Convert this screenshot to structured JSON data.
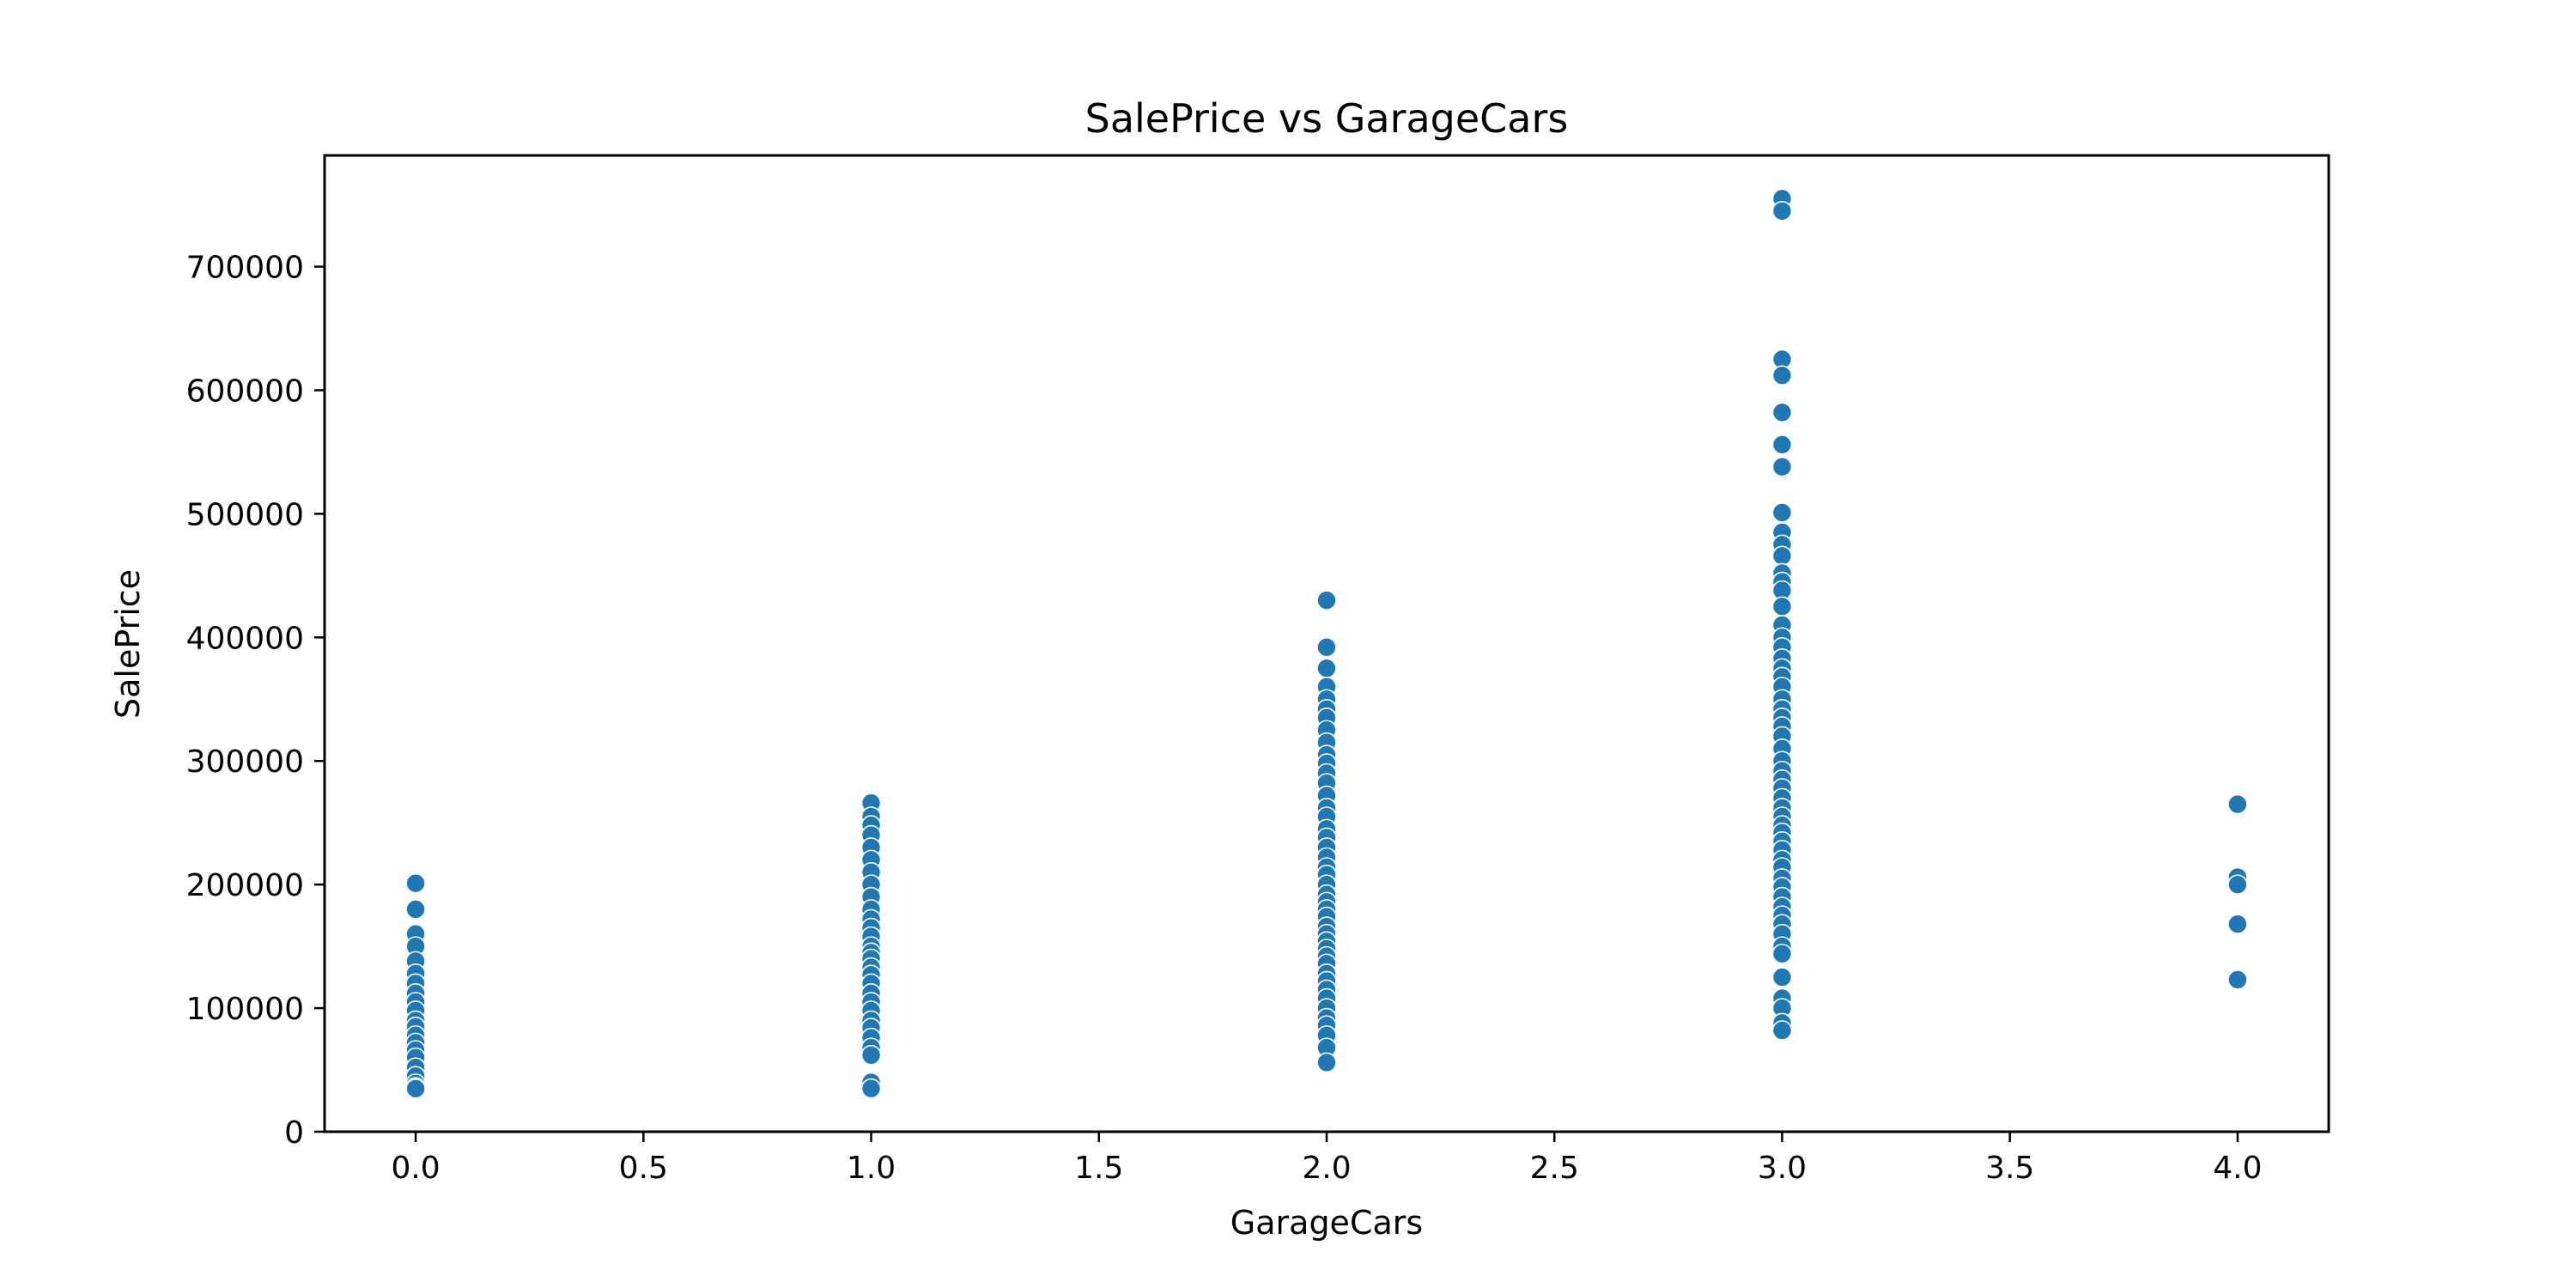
{
  "chart_data": {
    "type": "scatter",
    "title": "SalePrice vs GarageCars",
    "xlabel": "GarageCars",
    "ylabel": "SalePrice",
    "xlim": [
      -0.2,
      4.2
    ],
    "ylim": [
      0,
      790000
    ],
    "xticks": [
      "0.0",
      "0.5",
      "1.0",
      "1.5",
      "2.0",
      "2.5",
      "3.0",
      "3.5",
      "4.0"
    ],
    "yticks": [
      "0",
      "100000",
      "200000",
      "300000",
      "400000",
      "500000",
      "600000",
      "700000"
    ],
    "grid": false,
    "marker_color": "#1f77b4",
    "series": [
      {
        "points": [
          [
            0,
            201000
          ],
          [
            0,
            180000
          ],
          [
            0,
            160000
          ],
          [
            0,
            150000
          ],
          [
            0,
            138000
          ],
          [
            0,
            128000
          ],
          [
            0,
            120000
          ],
          [
            0,
            112000
          ],
          [
            0,
            105000
          ],
          [
            0,
            98000
          ],
          [
            0,
            90000
          ],
          [
            0,
            85000
          ],
          [
            0,
            78000
          ],
          [
            0,
            72000
          ],
          [
            0,
            66000
          ],
          [
            0,
            60000
          ],
          [
            0,
            52000
          ],
          [
            0,
            45000
          ],
          [
            0,
            39000
          ],
          [
            0,
            36000
          ],
          [
            0,
            34900
          ],
          [
            1,
            266000
          ],
          [
            1,
            255000
          ],
          [
            1,
            248000
          ],
          [
            1,
            240000
          ],
          [
            1,
            230000
          ],
          [
            1,
            220000
          ],
          [
            1,
            210000
          ],
          [
            1,
            200000
          ],
          [
            1,
            190000
          ],
          [
            1,
            180000
          ],
          [
            1,
            172000
          ],
          [
            1,
            165000
          ],
          [
            1,
            158000
          ],
          [
            1,
            150000
          ],
          [
            1,
            145000
          ],
          [
            1,
            140000
          ],
          [
            1,
            133000
          ],
          [
            1,
            127000
          ],
          [
            1,
            120000
          ],
          [
            1,
            112000
          ],
          [
            1,
            105000
          ],
          [
            1,
            98000
          ],
          [
            1,
            90000
          ],
          [
            1,
            84000
          ],
          [
            1,
            76000
          ],
          [
            1,
            68000
          ],
          [
            1,
            62000
          ],
          [
            1,
            40000
          ],
          [
            1,
            35000
          ],
          [
            2,
            430000
          ],
          [
            2,
            392000
          ],
          [
            2,
            375000
          ],
          [
            2,
            360000
          ],
          [
            2,
            350000
          ],
          [
            2,
            342000
          ],
          [
            2,
            335000
          ],
          [
            2,
            325000
          ],
          [
            2,
            315000
          ],
          [
            2,
            305000
          ],
          [
            2,
            298000
          ],
          [
            2,
            290000
          ],
          [
            2,
            282000
          ],
          [
            2,
            272000
          ],
          [
            2,
            262000
          ],
          [
            2,
            255000
          ],
          [
            2,
            245000
          ],
          [
            2,
            238000
          ],
          [
            2,
            230000
          ],
          [
            2,
            222000
          ],
          [
            2,
            214000
          ],
          [
            2,
            208000
          ],
          [
            2,
            200000
          ],
          [
            2,
            192000
          ],
          [
            2,
            186000
          ],
          [
            2,
            180000
          ],
          [
            2,
            174000
          ],
          [
            2,
            166000
          ],
          [
            2,
            160000
          ],
          [
            2,
            154000
          ],
          [
            2,
            148000
          ],
          [
            2,
            142000
          ],
          [
            2,
            136000
          ],
          [
            2,
            128000
          ],
          [
            2,
            122000
          ],
          [
            2,
            115000
          ],
          [
            2,
            108000
          ],
          [
            2,
            100000
          ],
          [
            2,
            92000
          ],
          [
            2,
            86000
          ],
          [
            2,
            78000
          ],
          [
            2,
            68000
          ],
          [
            2,
            56000
          ],
          [
            3,
            755000
          ],
          [
            3,
            745000
          ],
          [
            3,
            625000
          ],
          [
            3,
            612000
          ],
          [
            3,
            582000
          ],
          [
            3,
            556000
          ],
          [
            3,
            538000
          ],
          [
            3,
            501000
          ],
          [
            3,
            485000
          ],
          [
            3,
            475000
          ],
          [
            3,
            466000
          ],
          [
            3,
            452000
          ],
          [
            3,
            445000
          ],
          [
            3,
            438000
          ],
          [
            3,
            425000
          ],
          [
            3,
            410000
          ],
          [
            3,
            400000
          ],
          [
            3,
            392000
          ],
          [
            3,
            383000
          ],
          [
            3,
            375000
          ],
          [
            3,
            368000
          ],
          [
            3,
            360000
          ],
          [
            3,
            350000
          ],
          [
            3,
            342000
          ],
          [
            3,
            335000
          ],
          [
            3,
            328000
          ],
          [
            3,
            320000
          ],
          [
            3,
            310000
          ],
          [
            3,
            300000
          ],
          [
            3,
            292000
          ],
          [
            3,
            285000
          ],
          [
            3,
            278000
          ],
          [
            3,
            270000
          ],
          [
            3,
            262000
          ],
          [
            3,
            255000
          ],
          [
            3,
            248000
          ],
          [
            3,
            242000
          ],
          [
            3,
            235000
          ],
          [
            3,
            228000
          ],
          [
            3,
            220000
          ],
          [
            3,
            214000
          ],
          [
            3,
            205000
          ],
          [
            3,
            198000
          ],
          [
            3,
            190000
          ],
          [
            3,
            182000
          ],
          [
            3,
            175000
          ],
          [
            3,
            168000
          ],
          [
            3,
            160000
          ],
          [
            3,
            150000
          ],
          [
            3,
            144000
          ],
          [
            3,
            125000
          ],
          [
            3,
            108000
          ],
          [
            3,
            100000
          ],
          [
            3,
            88000
          ],
          [
            3,
            82000
          ],
          [
            4,
            265000
          ],
          [
            4,
            206000
          ],
          [
            4,
            200000
          ],
          [
            4,
            168000
          ],
          [
            4,
            123000
          ]
        ]
      }
    ]
  }
}
